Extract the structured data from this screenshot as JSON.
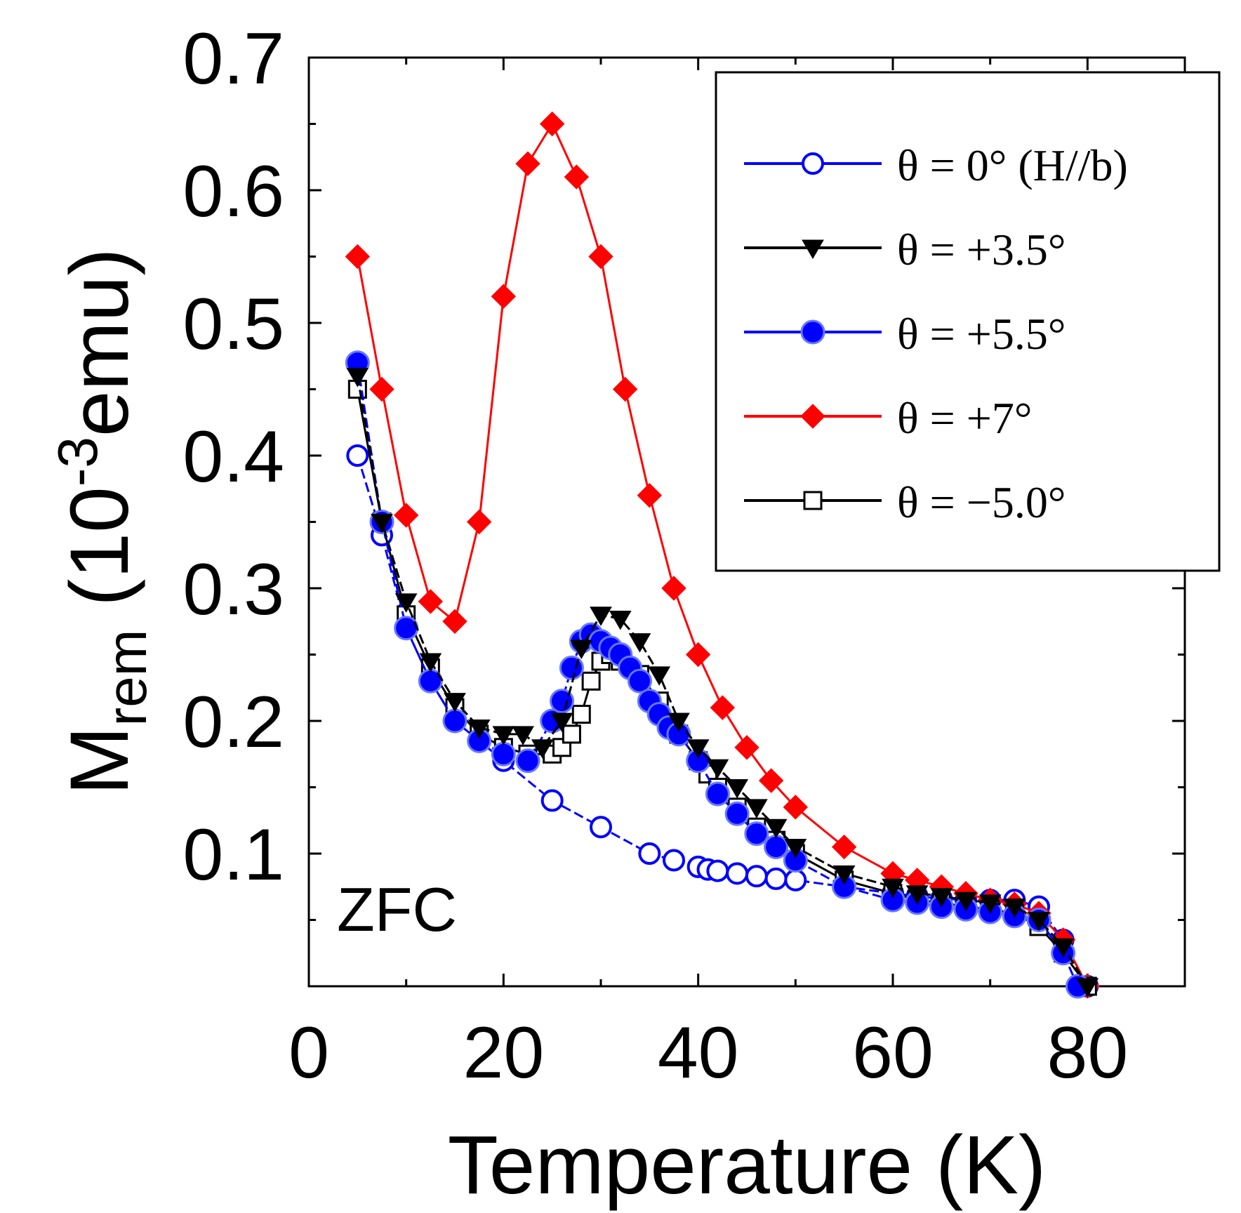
{
  "chart_data": {
    "type": "line",
    "xlabel": "Temperature (K)",
    "ylabel": {
      "main": "M",
      "sub": "rem",
      "paren_open": " (10",
      "sup": "-3",
      "unit": "emu)"
    },
    "annotation": "ZFC",
    "xlim": [
      0,
      90
    ],
    "ylim": [
      0,
      0.7
    ],
    "x_ticks": [
      "0",
      "20",
      "40",
      "60",
      "80"
    ],
    "y_ticks": [
      "0.1",
      "0.2",
      "0.3",
      "0.4",
      "0.5",
      "0.6",
      "0.7"
    ],
    "legend_position": "top-right",
    "series": [
      {
        "name": "θ = 0° (H//b)",
        "color": "#0000ff",
        "marker": "open-circle",
        "dash": "dashed",
        "x": [
          5,
          7.5,
          10,
          12.5,
          15,
          17.5,
          20,
          25,
          30,
          35,
          37.5,
          40,
          41,
          42,
          44,
          46,
          48,
          50,
          55,
          60,
          62.5,
          65,
          67.5,
          70,
          72.5,
          75,
          77.5,
          80
        ],
        "y": [
          0.4,
          0.34,
          0.27,
          0.23,
          0.2,
          0.185,
          0.17,
          0.14,
          0.12,
          0.1,
          0.095,
          0.09,
          0.088,
          0.087,
          0.085,
          0.083,
          0.081,
          0.08,
          0.075,
          0.07,
          0.068,
          0.066,
          0.065,
          0.065,
          0.065,
          0.06,
          0.035,
          0.0
        ]
      },
      {
        "name": "θ = +3.5°",
        "color": "#000000",
        "marker": "filled-triangle-down",
        "dash": "dashed",
        "x": [
          5,
          7.5,
          10,
          12.5,
          15,
          17.5,
          20,
          22,
          24,
          26,
          28,
          30,
          32,
          34,
          36,
          38,
          40,
          42,
          44,
          46,
          48,
          50,
          55,
          60,
          62.5,
          65,
          67.5,
          70,
          72.5,
          75,
          77.5,
          80
        ],
        "y": [
          0.46,
          0.35,
          0.29,
          0.245,
          0.215,
          0.195,
          0.19,
          0.19,
          0.18,
          0.2,
          0.255,
          0.28,
          0.277,
          0.26,
          0.235,
          0.2,
          0.18,
          0.165,
          0.15,
          0.135,
          0.12,
          0.105,
          0.085,
          0.075,
          0.07,
          0.068,
          0.065,
          0.063,
          0.06,
          0.05,
          0.03,
          0.0
        ]
      },
      {
        "name": "θ = +5.5°",
        "color": "#0000ff",
        "marker": "filled-circle",
        "dash": "dashed",
        "x": [
          5,
          7.5,
          10,
          12.5,
          15,
          17.5,
          20,
          22.5,
          25,
          26,
          27,
          28,
          29,
          30,
          31,
          32,
          33,
          34,
          35,
          36,
          37,
          38,
          40,
          42,
          44,
          46,
          48,
          50,
          55,
          60,
          62.5,
          65,
          67.5,
          70,
          72.5,
          75,
          77.5,
          79
        ],
        "y": [
          0.47,
          0.35,
          0.27,
          0.23,
          0.2,
          0.185,
          0.175,
          0.17,
          0.2,
          0.215,
          0.24,
          0.26,
          0.265,
          0.26,
          0.255,
          0.25,
          0.24,
          0.23,
          0.215,
          0.205,
          0.195,
          0.19,
          0.17,
          0.145,
          0.13,
          0.115,
          0.105,
          0.095,
          0.075,
          0.065,
          0.063,
          0.06,
          0.058,
          0.056,
          0.053,
          0.05,
          0.025,
          0.0
        ]
      },
      {
        "name": "θ = +7°",
        "color": "#ff0000",
        "marker": "filled-diamond",
        "dash": "solid",
        "x": [
          5,
          7.5,
          10,
          12.5,
          15,
          17.5,
          20,
          22.5,
          25,
          27.5,
          30,
          32.5,
          35,
          37.5,
          40,
          42.5,
          45,
          47.5,
          50,
          55,
          60,
          62.5,
          65,
          67.5,
          70,
          72.5,
          75,
          77.5,
          80
        ],
        "y": [
          0.55,
          0.45,
          0.355,
          0.29,
          0.275,
          0.35,
          0.52,
          0.62,
          0.65,
          0.61,
          0.55,
          0.45,
          0.37,
          0.3,
          0.25,
          0.21,
          0.18,
          0.155,
          0.135,
          0.105,
          0.085,
          0.08,
          0.075,
          0.07,
          0.065,
          0.062,
          0.055,
          0.035,
          0.0
        ]
      },
      {
        "name": "θ = −5.0°",
        "color": "#000000",
        "marker": "open-square",
        "dash": "solid",
        "x": [
          5,
          7.5,
          10,
          12.5,
          15,
          17.5,
          20,
          22.5,
          25,
          26,
          27,
          28,
          29,
          30,
          31,
          32,
          34,
          36,
          38,
          40,
          41,
          42,
          44,
          46,
          48,
          50,
          55,
          60,
          62.5,
          65,
          67.5,
          70,
          72.5,
          75,
          77.5,
          80
        ],
        "y": [
          0.45,
          0.35,
          0.28,
          0.24,
          0.21,
          0.19,
          0.18,
          0.175,
          0.175,
          0.18,
          0.19,
          0.205,
          0.23,
          0.245,
          0.25,
          0.245,
          0.235,
          0.215,
          0.19,
          0.17,
          0.16,
          0.15,
          0.135,
          0.12,
          0.11,
          0.1,
          0.08,
          0.07,
          0.065,
          0.063,
          0.06,
          0.058,
          0.055,
          0.045,
          0.025,
          0.0
        ]
      }
    ]
  }
}
